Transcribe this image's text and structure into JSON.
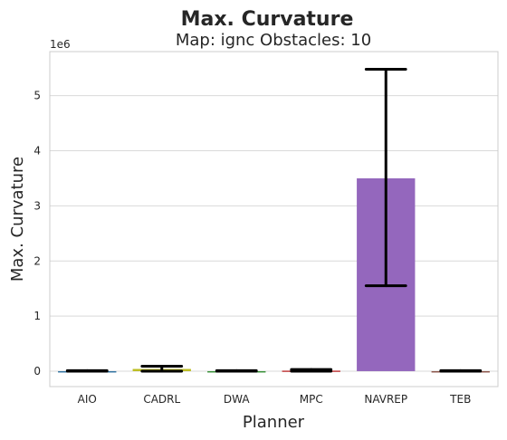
{
  "chart_data": {
    "type": "bar",
    "title": "Max. Curvature",
    "subtitle": "Map: ignc Obstacles: 10",
    "xlabel": "Planner",
    "ylabel": "Max. Curvature",
    "y_offset_label": "1e6",
    "y_scale": 1000000,
    "ylim": [
      -0.28,
      5.8
    ],
    "yticks": [
      0,
      1,
      2,
      3,
      4,
      5
    ],
    "grid": true,
    "categories": [
      "AIO",
      "CADRL",
      "DWA",
      "MPC",
      "NAVREP",
      "TEB"
    ],
    "values": [
      0.0,
      0.04,
      0.0,
      0.01,
      3.5,
      0.0
    ],
    "error_low": [
      0.0,
      0.0,
      0.0,
      0.0,
      1.55,
      0.0
    ],
    "error_high": [
      0.01,
      0.09,
      0.01,
      0.03,
      5.48,
      0.01
    ],
    "colors": [
      "#3274a1",
      "#bcbd22",
      "#3a923a",
      "#c03d3e",
      "#9467bd",
      "#8c564b"
    ]
  }
}
